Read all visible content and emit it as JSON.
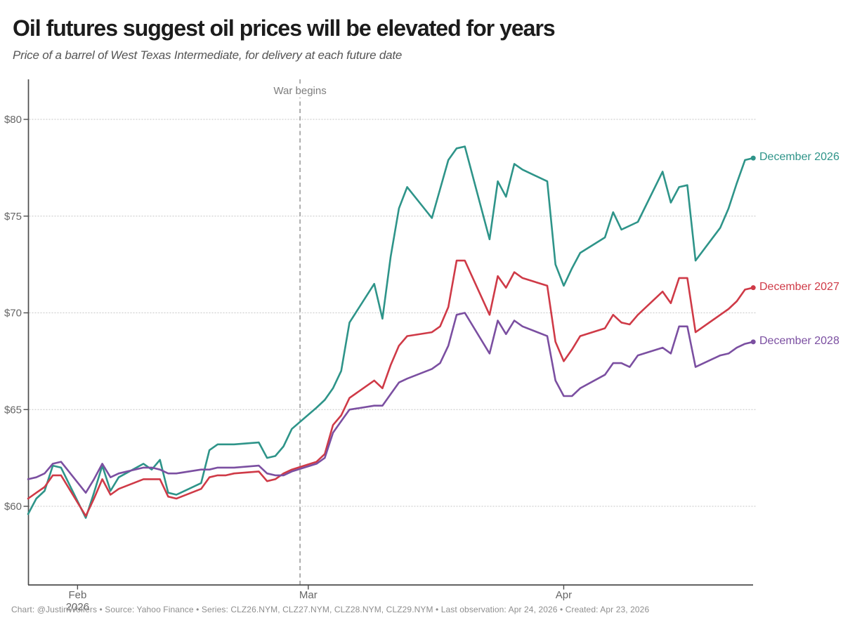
{
  "header": {
    "title": "Oil futures suggest oil prices will be elevated for years",
    "subtitle": "Price of a barrel of West Texas Intermediate, for delivery at each future date"
  },
  "annotation": {
    "war_label": "War begins",
    "war_date": "2026-02-28"
  },
  "footer": {
    "text": "Chart: @JustinWolfers • Source: Yahoo Finance • Series: CLZ26.NYM, CLZ27.NYM, CLZ28.NYM, CLZ29.NYM • Last observation: Apr 24, 2026 • Created: Apr 23, 2026"
  },
  "chart_data": {
    "type": "line",
    "title": "Oil futures suggest oil prices will be elevated for years",
    "subtitle": "Price of a barrel of West Texas Intermediate, for delivery at each future date",
    "x_axis_type": "date",
    "x_range": [
      "2026-01-26",
      "2026-04-24"
    ],
    "ylim": [
      56,
      82
    ],
    "grid": "dotted horizontal",
    "legend_position": "end-of-line right labels",
    "y_ticks": [
      {
        "value": 60,
        "label": "$60"
      },
      {
        "value": 65,
        "label": "$65"
      },
      {
        "value": 70,
        "label": "$70"
      },
      {
        "value": 75,
        "label": "$75"
      },
      {
        "value": 80,
        "label": "$80"
      }
    ],
    "x_ticks": [
      {
        "date": "2026-02-01",
        "label": "Feb",
        "sublabel": "2026"
      },
      {
        "date": "2026-03-01",
        "label": "Mar"
      },
      {
        "date": "2026-04-01",
        "label": "Apr"
      }
    ],
    "dates": [
      "2026-01-26",
      "2026-01-27",
      "2026-01-28",
      "2026-01-29",
      "2026-01-30",
      "2026-02-02",
      "2026-02-03",
      "2026-02-04",
      "2026-02-05",
      "2026-02-06",
      "2026-02-09",
      "2026-02-10",
      "2026-02-11",
      "2026-02-12",
      "2026-02-13",
      "2026-02-16",
      "2026-02-17",
      "2026-02-18",
      "2026-02-19",
      "2026-02-20",
      "2026-02-23",
      "2026-02-24",
      "2026-02-25",
      "2026-02-26",
      "2026-02-27",
      "2026-03-02",
      "2026-03-03",
      "2026-03-04",
      "2026-03-05",
      "2026-03-06",
      "2026-03-09",
      "2026-03-10",
      "2026-03-11",
      "2026-03-12",
      "2026-03-13",
      "2026-03-16",
      "2026-03-17",
      "2026-03-18",
      "2026-03-19",
      "2026-03-20",
      "2026-03-23",
      "2026-03-24",
      "2026-03-25",
      "2026-03-26",
      "2026-03-27",
      "2026-03-30",
      "2026-03-31",
      "2026-04-01",
      "2026-04-02",
      "2026-04-03",
      "2026-04-06",
      "2026-04-07",
      "2026-04-08",
      "2026-04-09",
      "2026-04-10",
      "2026-04-13",
      "2026-04-14",
      "2026-04-15",
      "2026-04-16",
      "2026-04-17",
      "2026-04-20",
      "2026-04-21",
      "2026-04-22",
      "2026-04-23",
      "2026-04-24"
    ],
    "series": [
      {
        "name": "CLZ26.NYM",
        "label": "December 2026",
        "color": "#2e9489",
        "values": [
          59.6,
          60.4,
          60.8,
          62.1,
          62.0,
          59.4,
          60.7,
          62.1,
          60.8,
          61.5,
          62.2,
          61.9,
          62.4,
          60.7,
          60.6,
          61.2,
          62.9,
          63.2,
          63.2,
          63.2,
          63.3,
          62.5,
          62.6,
          63.1,
          64.0,
          65.1,
          65.5,
          66.1,
          67.0,
          69.5,
          71.5,
          69.7,
          72.9,
          75.4,
          76.5,
          74.9,
          76.4,
          77.9,
          78.5,
          78.6,
          73.8,
          76.8,
          76.0,
          77.7,
          77.4,
          76.8,
          72.5,
          71.4,
          72.3,
          73.1,
          73.9,
          75.2,
          74.3,
          74.5,
          74.7,
          77.3,
          75.7,
          76.5,
          76.6,
          72.7,
          74.4,
          75.4,
          76.7,
          77.9,
          78.0
        ]
      },
      {
        "name": "CLZ27.NYM",
        "label": "December 2027",
        "color": "#cf3a47",
        "values": [
          60.4,
          60.7,
          61.0,
          61.6,
          61.6,
          59.5,
          60.4,
          61.4,
          60.6,
          60.9,
          61.4,
          61.4,
          61.4,
          60.5,
          60.4,
          60.9,
          61.5,
          61.6,
          61.6,
          61.7,
          61.8,
          61.3,
          61.4,
          61.7,
          61.9,
          62.3,
          62.7,
          64.2,
          64.7,
          65.6,
          66.5,
          66.1,
          67.3,
          68.3,
          68.8,
          69.0,
          69.3,
          70.3,
          72.7,
          72.7,
          69.9,
          71.9,
          71.3,
          72.1,
          71.8,
          71.4,
          68.5,
          67.5,
          68.1,
          68.8,
          69.2,
          69.9,
          69.5,
          69.4,
          69.9,
          71.1,
          70.5,
          71.8,
          71.8,
          69.0,
          69.9,
          70.2,
          70.6,
          71.2,
          71.3
        ]
      },
      {
        "name": "CLZ28.NYM",
        "label": "December 2028",
        "color": "#7b4fa1",
        "values": [
          61.4,
          61.5,
          61.7,
          62.2,
          62.3,
          60.7,
          61.4,
          62.2,
          61.5,
          61.7,
          62.0,
          62.0,
          61.9,
          61.7,
          61.7,
          61.9,
          61.9,
          62.0,
          62.0,
          62.0,
          62.1,
          61.7,
          61.6,
          61.6,
          61.8,
          62.2,
          62.5,
          63.8,
          64.4,
          65.0,
          65.2,
          65.2,
          65.8,
          66.4,
          66.6,
          67.1,
          67.4,
          68.3,
          69.9,
          70.0,
          67.9,
          69.6,
          68.9,
          69.6,
          69.3,
          68.8,
          66.5,
          65.7,
          65.7,
          66.1,
          66.8,
          67.4,
          67.4,
          67.2,
          67.8,
          68.2,
          67.9,
          69.3,
          69.3,
          67.2,
          67.8,
          67.9,
          68.2,
          68.4,
          68.5
        ]
      }
    ]
  }
}
